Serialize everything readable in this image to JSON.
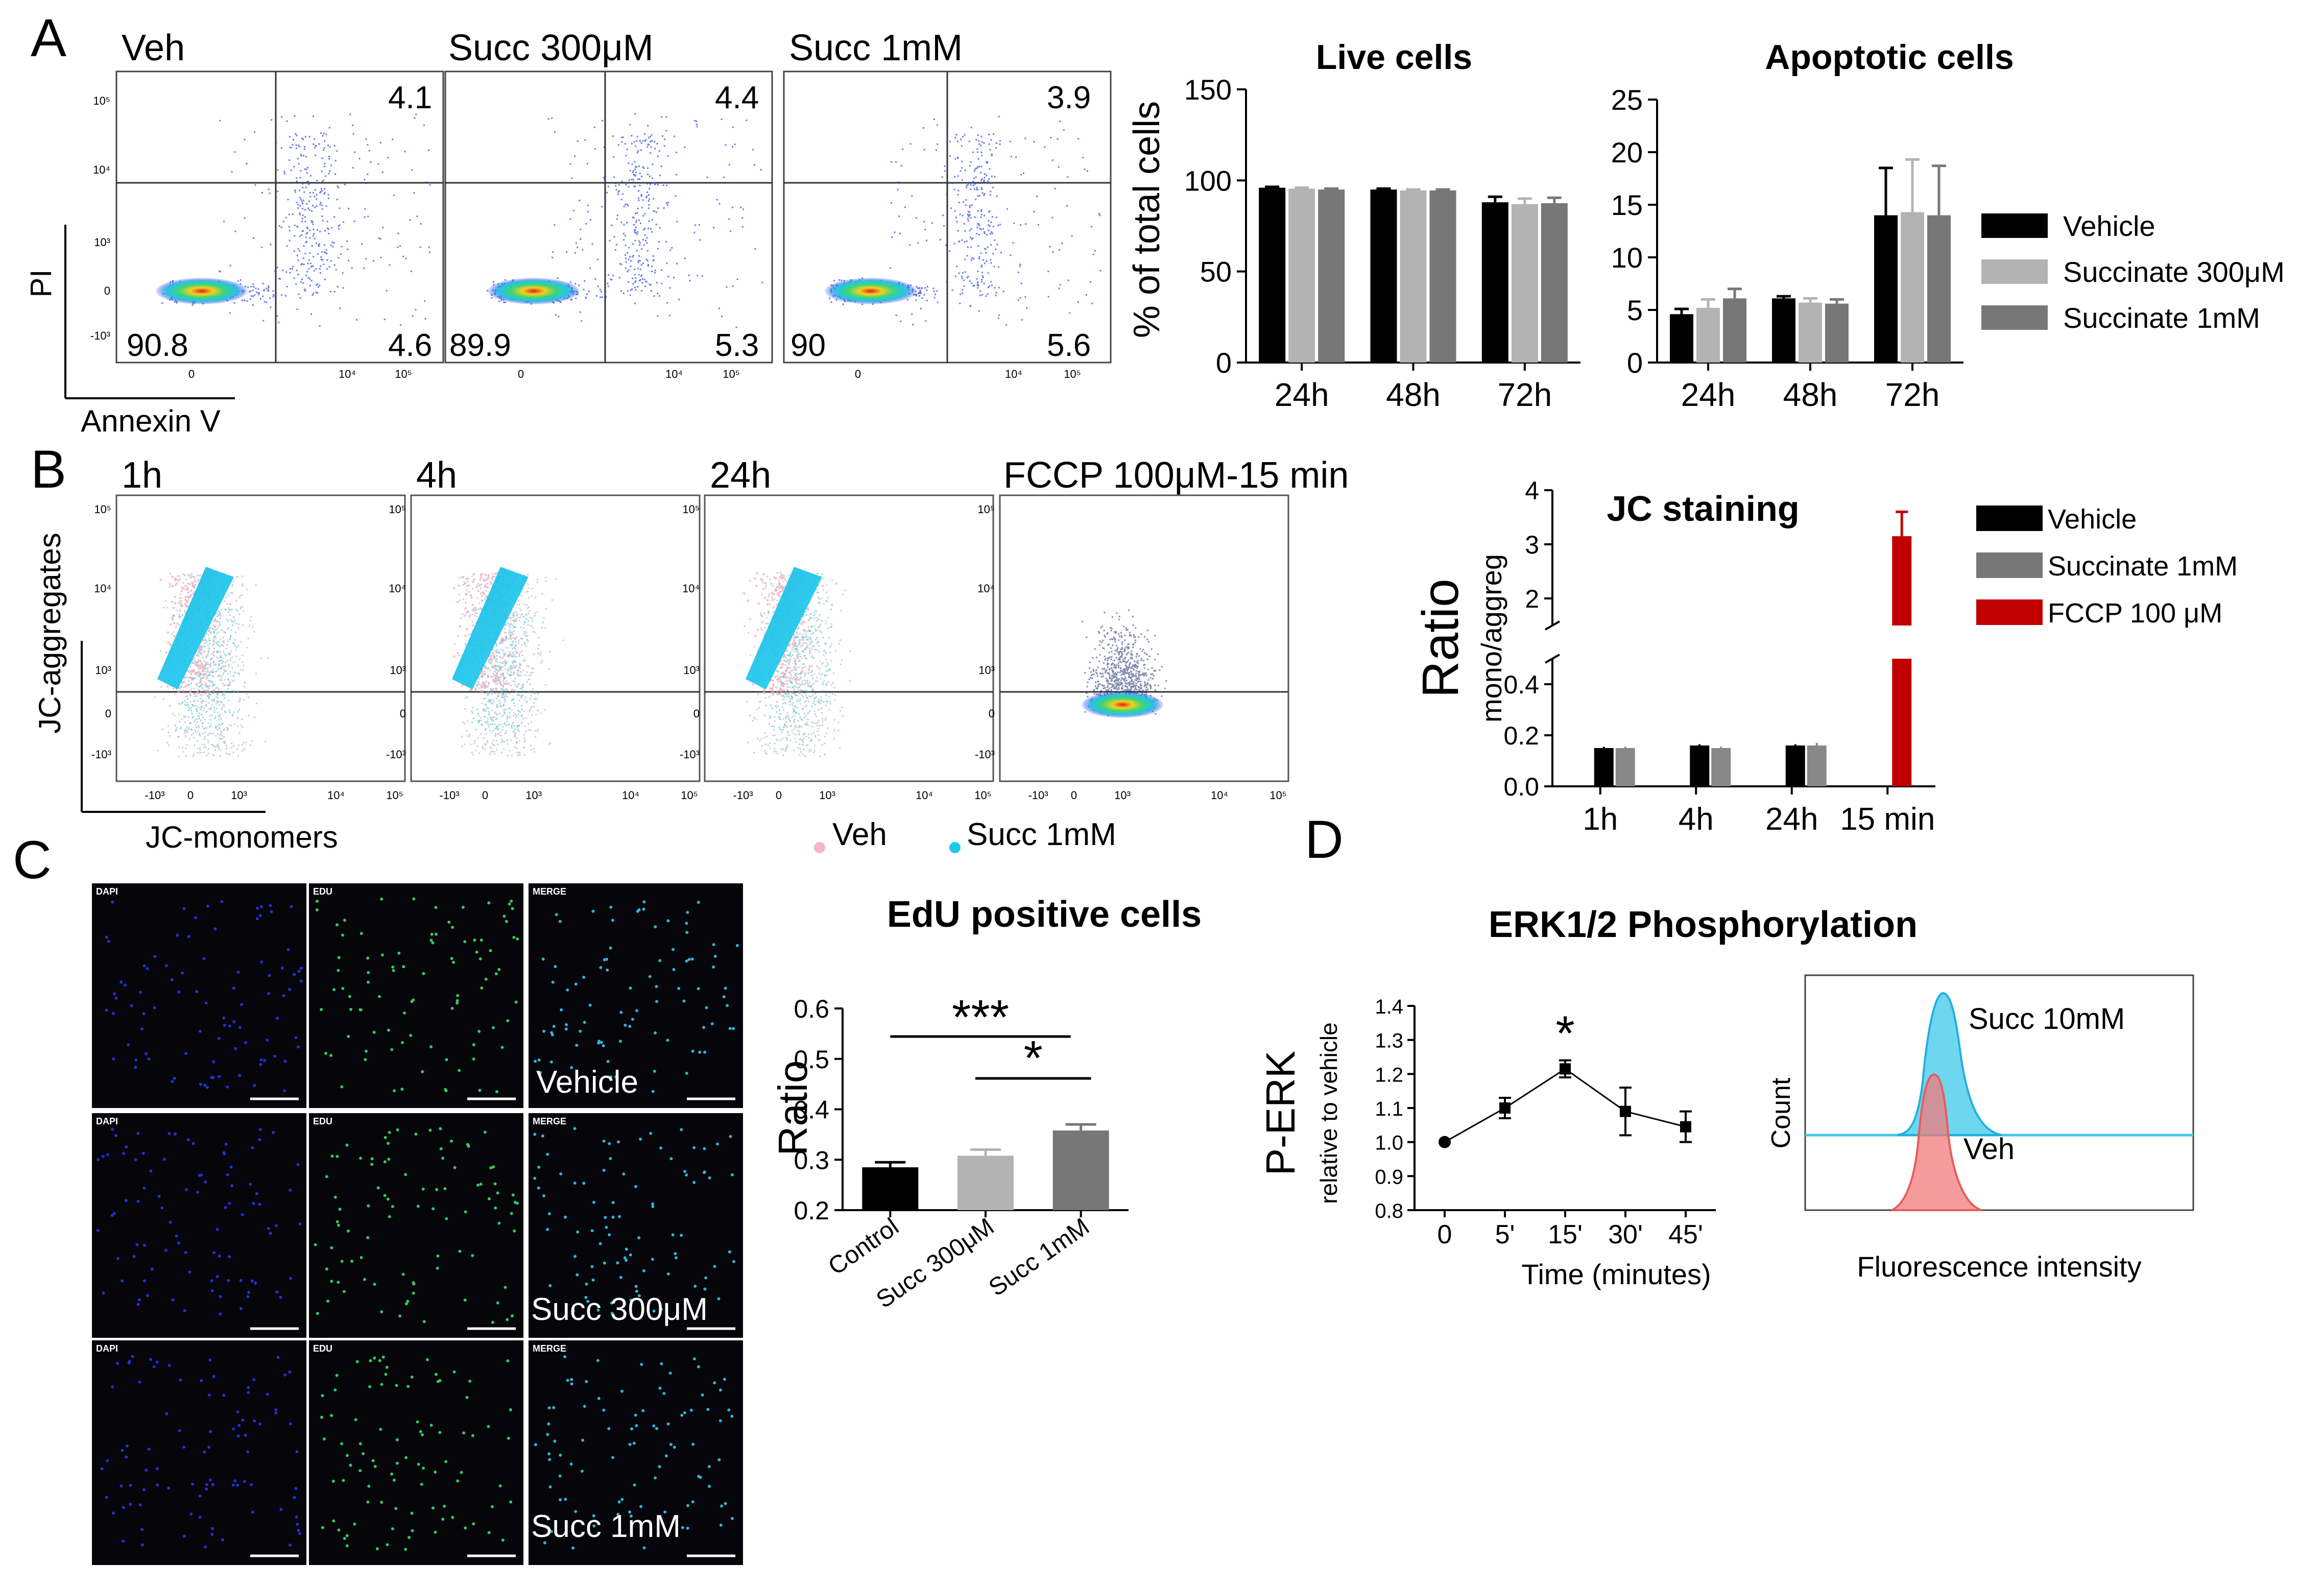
{
  "panel_letters": [
    "A",
    "B",
    "C",
    "D"
  ],
  "flow_a": {
    "plots": [
      {
        "title": "Veh",
        "q_ul": "",
        "q_ur": "4.1",
        "q_ll": "90.8",
        "q_lr": "4.6"
      },
      {
        "title": "Succ 300μM",
        "q_ur": "4.4",
        "q_ll": "89.9",
        "q_lr": "5.3"
      },
      {
        "title": "Succ 1mM",
        "q_ur": "3.9",
        "q_ll": "90",
        "q_lr": "5.6"
      }
    ],
    "y_axis_label": "PI",
    "x_axis_label": "Annexin V",
    "y_ticks": [
      "10⁵",
      "10⁴",
      "10³",
      "0",
      "-10³"
    ],
    "x_ticks": [
      "0",
      "10⁴",
      "10⁵"
    ]
  },
  "flow_b": {
    "plots": [
      {
        "title": "1h"
      },
      {
        "title": "4h"
      },
      {
        "title": "24h"
      },
      {
        "title": "FCCP 100μM-15 min"
      }
    ],
    "y_axis_label": "JC-aggregates",
    "x_axis_label": "JC-monomers",
    "legend": [
      {
        "label": "Veh",
        "color": "#f4b6c2"
      },
      {
        "label": "Succ 1mM",
        "color": "#1ec8e8"
      }
    ],
    "y_ticks": [
      "10⁵",
      "10⁴",
      "10³",
      "0",
      "-10³"
    ],
    "x_ticks": [
      "-10³",
      "0",
      "10³",
      "10⁴",
      "10⁵"
    ]
  },
  "micro_c": {
    "col_labels": [
      "DAPI",
      "EDU",
      "MERGE"
    ],
    "row_labels": [
      "Vehicle",
      "Succ 300μM",
      "Succ 1mM"
    ]
  },
  "hist_d": {
    "labels": [
      "Succ 10mM",
      "Veh"
    ],
    "y_label": "Count",
    "x_label": "Fluorescence intensity",
    "colors": {
      "succ": "#3fc8ea",
      "veh": "#f07b7b"
    }
  },
  "chart_data": [
    {
      "id": "live",
      "type": "bar",
      "title": "Live cells",
      "ylabel": "% of total cells",
      "xlabel": "",
      "categories": [
        "24h",
        "48h",
        "72h"
      ],
      "series": [
        {
          "name": "Vehicle",
          "values": [
            96,
            95,
            88
          ],
          "errors": [
            0.5,
            0.5,
            3
          ]
        },
        {
          "name": "Succinate 300μM",
          "values": [
            95.5,
            94.5,
            87
          ],
          "errors": [
            0.5,
            0.5,
            3
          ]
        },
        {
          "name": "Succinate 1mM",
          "values": [
            95,
            94.5,
            87.5
          ],
          "errors": [
            0.5,
            0.5,
            3
          ]
        }
      ],
      "ylim": [
        0,
        150
      ],
      "yticks": [
        "0",
        "50",
        "100",
        "150"
      ]
    },
    {
      "id": "apoptotic",
      "type": "bar",
      "title": "Apoptotic cells",
      "ylabel": "",
      "xlabel": "",
      "categories": [
        "24h",
        "48h",
        "72h"
      ],
      "series": [
        {
          "name": "Vehicle",
          "values": [
            4.6,
            6.1,
            14
          ],
          "errors": [
            0.5,
            0.2,
            4.5
          ]
        },
        {
          "name": "Succinate 300μM",
          "values": [
            5.2,
            5.7,
            14.3
          ],
          "errors": [
            0.8,
            0.4,
            5
          ]
        },
        {
          "name": "Succinate 1mM",
          "values": [
            6.1,
            5.6,
            14
          ],
          "errors": [
            0.9,
            0.4,
            4.7
          ]
        }
      ],
      "ylim": [
        0,
        25
      ],
      "yticks": [
        "0",
        "5",
        "10",
        "15",
        "20",
        "25"
      ],
      "legend": [
        "Vehicle",
        "Succinate 300μM",
        "Succinate 1mM"
      ]
    },
    {
      "id": "jc",
      "type": "bar",
      "title": "JC staining",
      "ylabel": "Ratio",
      "ylabel_sub": "mono/aggreg",
      "categories": [
        "1h",
        "4h",
        "24h",
        "15 min"
      ],
      "series": [
        {
          "name": "Vehicle",
          "values": [
            0.15,
            0.16,
            0.16,
            null
          ],
          "errors": [
            0.005,
            0.005,
            0.005,
            null
          ]
        },
        {
          "name": "Succinate 1mM",
          "values": [
            0.15,
            0.15,
            0.16,
            null
          ],
          "errors": [
            0.005,
            0.005,
            0.01,
            null
          ]
        },
        {
          "name": "FCCP 100 μM",
          "values": [
            null,
            null,
            null,
            3.15
          ],
          "errors": [
            null,
            null,
            null,
            0.45
          ]
        }
      ],
      "axis_break": {
        "lower": [
          0,
          0.5
        ],
        "upper": [
          1.5,
          4
        ]
      },
      "yticks_lower": [
        "0.0",
        "0.2",
        "0.4"
      ],
      "yticks_upper": [
        "2",
        "3",
        "4"
      ],
      "legend": [
        "Vehicle",
        "Succinate 1mM",
        "FCCP 100 μM"
      ]
    },
    {
      "id": "edu",
      "type": "bar",
      "title": "EdU positive cells",
      "ylabel": "Ratio",
      "categories": [
        "Control",
        "Succ 300μM",
        "Succ 1mM"
      ],
      "values": [
        0.285,
        0.308,
        0.358
      ],
      "errors": [
        0.01,
        0.012,
        0.012
      ],
      "ylim": [
        0.2,
        0.6
      ],
      "yticks": [
        "0.2",
        "0.3",
        "0.4",
        "0.5",
        "0.6"
      ],
      "annotations": [
        {
          "text": "***",
          "from": "Control",
          "to": "Succ 1mM"
        },
        {
          "text": "*",
          "from": "Succ 300μM",
          "to": "Succ 1mM"
        }
      ]
    },
    {
      "id": "erk",
      "type": "line",
      "title": "ERK1/2 Phosphorylation",
      "ylabel": "P-ERK",
      "ylabel_sub": "relative to vehicle",
      "xlabel": "Time (minutes)",
      "categories": [
        "0",
        "5'",
        "15'",
        "30'",
        "45'"
      ],
      "values": [
        1.0,
        1.1,
        1.215,
        1.09,
        1.045
      ],
      "errors": [
        0,
        0.03,
        0.025,
        0.07,
        0.045
      ],
      "ylim": [
        0.8,
        1.4
      ],
      "yticks": [
        "0.8",
        "0.9",
        "1.0",
        "1.1",
        "1.2",
        "1.3",
        "1.4"
      ],
      "annotations": [
        {
          "text": "*",
          "at": "15'"
        }
      ]
    }
  ]
}
